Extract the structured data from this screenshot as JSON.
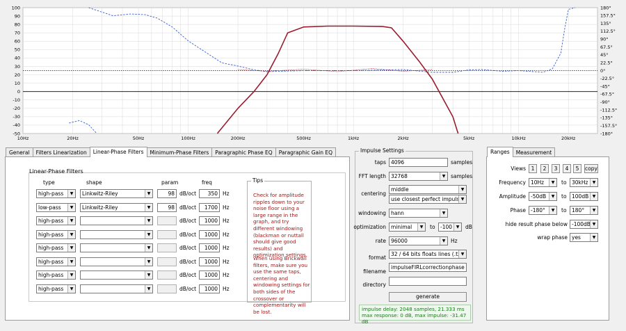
{
  "graph": {
    "y_ticks": [
      "100",
      "90",
      "80",
      "70",
      "60",
      "50",
      "40",
      "30",
      "20",
      "10",
      "0",
      "-10",
      "-20",
      "-30",
      "-40",
      "-50"
    ],
    "phase_ticks": [
      "180°",
      "157.5°",
      "135°",
      "112.5°",
      "90°",
      "67.5°",
      "45°",
      "22.5°",
      "0°",
      "-22.5°",
      "-45°",
      "-67.5°",
      "-90°",
      "-112.5°",
      "-135°",
      "-157.5°",
      "-180°"
    ],
    "x_ticks": [
      {
        "hz": 10,
        "label": "10Hz"
      },
      {
        "hz": 20,
        "label": "20Hz"
      },
      {
        "hz": 50,
        "label": "50Hz"
      },
      {
        "hz": 100,
        "label": "100Hz"
      },
      {
        "hz": 200,
        "label": "200Hz"
      },
      {
        "hz": 500,
        "label": "500Hz"
      },
      {
        "hz": 1000,
        "label": "1kHz"
      },
      {
        "hz": 2000,
        "label": "2kHz"
      },
      {
        "hz": 5000,
        "label": "5kHz"
      },
      {
        "hz": 10000,
        "label": "10kHz"
      },
      {
        "hz": 20000,
        "label": "20kHz"
      }
    ],
    "colors": {
      "magnitude": "#9b1b2e",
      "phase": "#3b5cc8",
      "reference": "#3a4a9a",
      "grid": "#d8d8d8",
      "zero": "#000000"
    }
  },
  "chart_data": {
    "type": "line",
    "xlabel": "",
    "ylabel": "",
    "x_scale": "log",
    "xlim": [
      10,
      30000
    ],
    "ylim": [
      -50,
      100
    ],
    "y2lim": [
      -180,
      180
    ],
    "grid": true,
    "series": [
      {
        "axis": "left",
        "points": [
          [
            150,
            -50
          ],
          [
            200,
            -20
          ],
          [
            250,
            0
          ],
          [
            300,
            20
          ],
          [
            350,
            45
          ],
          [
            400,
            70
          ],
          [
            500,
            77
          ],
          [
            700,
            78
          ],
          [
            1000,
            78
          ],
          [
            1500,
            77.5
          ],
          [
            1700,
            76
          ],
          [
            2000,
            60
          ],
          [
            2500,
            36
          ],
          [
            3000,
            15
          ],
          [
            4000,
            -30
          ],
          [
            4300,
            -50
          ]
        ]
      },
      {
        "axis": "right",
        "points": [
          [
            25,
            180
          ],
          [
            35,
            157
          ],
          [
            45,
            162
          ],
          [
            55,
            160
          ],
          [
            65,
            150
          ],
          [
            80,
            125
          ],
          [
            100,
            85
          ],
          [
            130,
            50
          ],
          [
            160,
            22
          ],
          [
            200,
            13
          ],
          [
            250,
            2
          ],
          [
            300,
            -3
          ],
          [
            500,
            0
          ],
          [
            1000,
            0
          ],
          [
            2000,
            3
          ],
          [
            3000,
            -5
          ],
          [
            4000,
            -5
          ],
          [
            5000,
            2
          ],
          [
            6000,
            3
          ],
          [
            8000,
            -2
          ],
          [
            10000,
            0
          ],
          [
            14000,
            -5
          ],
          [
            16000,
            5
          ],
          [
            18000,
            50
          ],
          [
            19000,
            120
          ],
          [
            20000,
            175
          ],
          [
            22000,
            180
          ]
        ]
      },
      {
        "axis": "right",
        "points": [
          [
            19,
            -150
          ],
          [
            22,
            -143
          ],
          [
            25,
            -155
          ],
          [
            28,
            -180
          ]
        ]
      },
      {
        "axis": "right",
        "points": [
          [
            10,
            0
          ],
          [
            30000,
            0
          ]
        ]
      }
    ]
  },
  "tabs": [
    "General",
    "Filters Linearization",
    "Linear-Phase Filters",
    "Minimum-Phase Filters",
    "Paragraphic Phase EQ",
    "Paragraphic Gain EQ"
  ],
  "lpf": {
    "title": "Linear-Phase Filters",
    "headers": {
      "type": "type",
      "shape": "shape",
      "param": "param",
      "freq": "freq"
    },
    "unit_dboct": "dB/oct",
    "unit_hz": "Hz",
    "rows": [
      {
        "type": "high-pass",
        "shape": "Linkwitz-Riley",
        "param": "98",
        "freq": "350",
        "enabled": true
      },
      {
        "type": "low-pass",
        "shape": "Linkwitz-Riley",
        "param": "98",
        "freq": "1700",
        "enabled": true
      },
      {
        "type": "high-pass",
        "shape": "",
        "param": "",
        "freq": "1000",
        "enabled": false
      },
      {
        "type": "high-pass",
        "shape": "",
        "param": "",
        "freq": "1000",
        "enabled": false
      },
      {
        "type": "high-pass",
        "shape": "",
        "param": "",
        "freq": "1000",
        "enabled": false
      },
      {
        "type": "high-pass",
        "shape": "",
        "param": "",
        "freq": "1000",
        "enabled": false
      },
      {
        "type": "high-pass",
        "shape": "",
        "param": "",
        "freq": "1000",
        "enabled": false
      },
      {
        "type": "high-pass",
        "shape": "",
        "param": "",
        "freq": "1000",
        "enabled": false
      }
    ],
    "tips_title": "Tips",
    "tips_p1": "Check for amplitude ripples down to your noise floor using a large range in the graph, and try different windowing (blackman or nuttall should give good results) and optimization settings.",
    "tips_p2": "When using Brickwall filters, make sure you use the same taps, centering and windowing settings for both sides of the crossover or complementarity will be lost."
  },
  "impulse": {
    "title": "Impulse Settings",
    "taps_label": "taps",
    "taps": "4096",
    "taps_unit": "samples",
    "fft_label": "FFT length",
    "fft": "32768",
    "fft_unit": "samples",
    "centering_label": "centering",
    "centering_1": "middle",
    "centering_2": "use closest perfect impulse",
    "windowing_label": "windowing",
    "windowing": "hann",
    "optimization_label": "optimization",
    "optimization": "minimal",
    "opt_to": "to",
    "opt_db": "-100",
    "opt_unit": "dB",
    "rate_label": "rate",
    "rate": "96000",
    "rate_unit": "Hz",
    "format_label": "format",
    "format": "32 / 64 bits floats lines (.txt)",
    "filename_label": "filename",
    "filename": "impulseFIRLcorrectionphase",
    "directory_label": "directory",
    "directory": "",
    "generate": "generate",
    "status_1": "impulse delay: 2048 samples, 21.333 ms",
    "status_2": "max response: 0 dB, max impulse: -31.47 dB"
  },
  "right_tabs": [
    "Ranges",
    "Measurement"
  ],
  "ranges": {
    "views_label": "Views",
    "views": [
      "1",
      "2",
      "3",
      "4",
      "5"
    ],
    "copy": "copy",
    "freq_label": "Frequency",
    "freq_from": "10Hz",
    "freq_to": "30kHz",
    "amp_label": "Amplitude",
    "amp_from": "-50dB",
    "amp_to": "100dB",
    "phase_label": "Phase",
    "phase_from": "-180°",
    "phase_to": "180°",
    "to": "to",
    "hide_label": "hide result phase below",
    "hide_val": "-100dB",
    "wrap_label": "wrap phase",
    "wrap_val": "yes"
  }
}
